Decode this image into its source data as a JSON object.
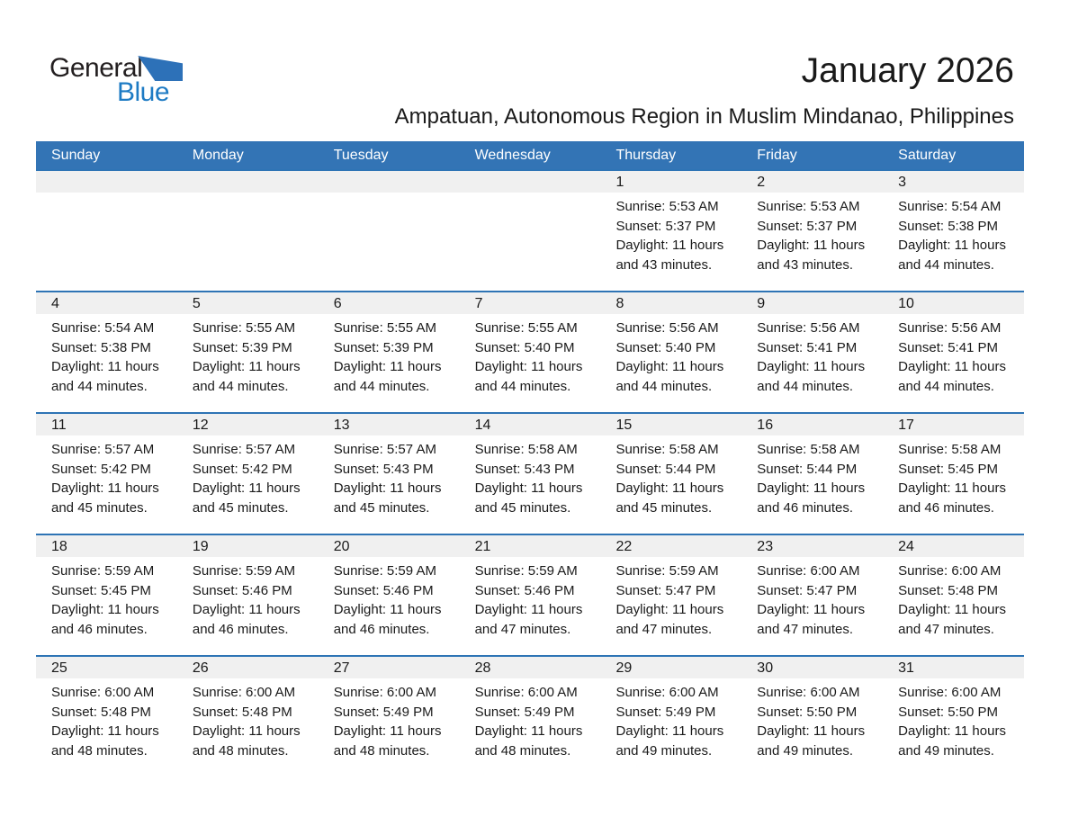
{
  "logo": {
    "general": "General",
    "blue": "Blue"
  },
  "header": {
    "title": "January 2026",
    "subtitle": "Ampatuan, Autonomous Region in Muslim Mindanao, Philippines"
  },
  "colors": {
    "header_blue": "#3374B5",
    "separator_blue": "#2E74B5",
    "band_gray": "#F0F0F0",
    "logo_blue": "#1E7BC4",
    "logo_triangle": "#2D71B8",
    "header_text": "#FFFFFF",
    "body_text": "#1A1A1A"
  },
  "calendar": {
    "weekdays": [
      "Sunday",
      "Monday",
      "Tuesday",
      "Wednesday",
      "Thursday",
      "Friday",
      "Saturday"
    ],
    "weeks": [
      [
        null,
        null,
        null,
        null,
        {
          "day": "1",
          "lines": [
            "Sunrise: 5:53 AM",
            "Sunset: 5:37 PM",
            "Daylight: 11 hours",
            "and 43 minutes."
          ]
        },
        {
          "day": "2",
          "lines": [
            "Sunrise: 5:53 AM",
            "Sunset: 5:37 PM",
            "Daylight: 11 hours",
            "and 43 minutes."
          ]
        },
        {
          "day": "3",
          "lines": [
            "Sunrise: 5:54 AM",
            "Sunset: 5:38 PM",
            "Daylight: 11 hours",
            "and 44 minutes."
          ]
        }
      ],
      [
        {
          "day": "4",
          "lines": [
            "Sunrise: 5:54 AM",
            "Sunset: 5:38 PM",
            "Daylight: 11 hours",
            "and 44 minutes."
          ]
        },
        {
          "day": "5",
          "lines": [
            "Sunrise: 5:55 AM",
            "Sunset: 5:39 PM",
            "Daylight: 11 hours",
            "and 44 minutes."
          ]
        },
        {
          "day": "6",
          "lines": [
            "Sunrise: 5:55 AM",
            "Sunset: 5:39 PM",
            "Daylight: 11 hours",
            "and 44 minutes."
          ]
        },
        {
          "day": "7",
          "lines": [
            "Sunrise: 5:55 AM",
            "Sunset: 5:40 PM",
            "Daylight: 11 hours",
            "and 44 minutes."
          ]
        },
        {
          "day": "8",
          "lines": [
            "Sunrise: 5:56 AM",
            "Sunset: 5:40 PM",
            "Daylight: 11 hours",
            "and 44 minutes."
          ]
        },
        {
          "day": "9",
          "lines": [
            "Sunrise: 5:56 AM",
            "Sunset: 5:41 PM",
            "Daylight: 11 hours",
            "and 44 minutes."
          ]
        },
        {
          "day": "10",
          "lines": [
            "Sunrise: 5:56 AM",
            "Sunset: 5:41 PM",
            "Daylight: 11 hours",
            "and 44 minutes."
          ]
        }
      ],
      [
        {
          "day": "11",
          "lines": [
            "Sunrise: 5:57 AM",
            "Sunset: 5:42 PM",
            "Daylight: 11 hours",
            "and 45 minutes."
          ]
        },
        {
          "day": "12",
          "lines": [
            "Sunrise: 5:57 AM",
            "Sunset: 5:42 PM",
            "Daylight: 11 hours",
            "and 45 minutes."
          ]
        },
        {
          "day": "13",
          "lines": [
            "Sunrise: 5:57 AM",
            "Sunset: 5:43 PM",
            "Daylight: 11 hours",
            "and 45 minutes."
          ]
        },
        {
          "day": "14",
          "lines": [
            "Sunrise: 5:58 AM",
            "Sunset: 5:43 PM",
            "Daylight: 11 hours",
            "and 45 minutes."
          ]
        },
        {
          "day": "15",
          "lines": [
            "Sunrise: 5:58 AM",
            "Sunset: 5:44 PM",
            "Daylight: 11 hours",
            "and 45 minutes."
          ]
        },
        {
          "day": "16",
          "lines": [
            "Sunrise: 5:58 AM",
            "Sunset: 5:44 PM",
            "Daylight: 11 hours",
            "and 46 minutes."
          ]
        },
        {
          "day": "17",
          "lines": [
            "Sunrise: 5:58 AM",
            "Sunset: 5:45 PM",
            "Daylight: 11 hours",
            "and 46 minutes."
          ]
        }
      ],
      [
        {
          "day": "18",
          "lines": [
            "Sunrise: 5:59 AM",
            "Sunset: 5:45 PM",
            "Daylight: 11 hours",
            "and 46 minutes."
          ]
        },
        {
          "day": "19",
          "lines": [
            "Sunrise: 5:59 AM",
            "Sunset: 5:46 PM",
            "Daylight: 11 hours",
            "and 46 minutes."
          ]
        },
        {
          "day": "20",
          "lines": [
            "Sunrise: 5:59 AM",
            "Sunset: 5:46 PM",
            "Daylight: 11 hours",
            "and 46 minutes."
          ]
        },
        {
          "day": "21",
          "lines": [
            "Sunrise: 5:59 AM",
            "Sunset: 5:46 PM",
            "Daylight: 11 hours",
            "and 47 minutes."
          ]
        },
        {
          "day": "22",
          "lines": [
            "Sunrise: 5:59 AM",
            "Sunset: 5:47 PM",
            "Daylight: 11 hours",
            "and 47 minutes."
          ]
        },
        {
          "day": "23",
          "lines": [
            "Sunrise: 6:00 AM",
            "Sunset: 5:47 PM",
            "Daylight: 11 hours",
            "and 47 minutes."
          ]
        },
        {
          "day": "24",
          "lines": [
            "Sunrise: 6:00 AM",
            "Sunset: 5:48 PM",
            "Daylight: 11 hours",
            "and 47 minutes."
          ]
        }
      ],
      [
        {
          "day": "25",
          "lines": [
            "Sunrise: 6:00 AM",
            "Sunset: 5:48 PM",
            "Daylight: 11 hours",
            "and 48 minutes."
          ]
        },
        {
          "day": "26",
          "lines": [
            "Sunrise: 6:00 AM",
            "Sunset: 5:48 PM",
            "Daylight: 11 hours",
            "and 48 minutes."
          ]
        },
        {
          "day": "27",
          "lines": [
            "Sunrise: 6:00 AM",
            "Sunset: 5:49 PM",
            "Daylight: 11 hours",
            "and 48 minutes."
          ]
        },
        {
          "day": "28",
          "lines": [
            "Sunrise: 6:00 AM",
            "Sunset: 5:49 PM",
            "Daylight: 11 hours",
            "and 48 minutes."
          ]
        },
        {
          "day": "29",
          "lines": [
            "Sunrise: 6:00 AM",
            "Sunset: 5:49 PM",
            "Daylight: 11 hours",
            "and 49 minutes."
          ]
        },
        {
          "day": "30",
          "lines": [
            "Sunrise: 6:00 AM",
            "Sunset: 5:50 PM",
            "Daylight: 11 hours",
            "and 49 minutes."
          ]
        },
        {
          "day": "31",
          "lines": [
            "Sunrise: 6:00 AM",
            "Sunset: 5:50 PM",
            "Daylight: 11 hours",
            "and 49 minutes."
          ]
        }
      ]
    ]
  }
}
